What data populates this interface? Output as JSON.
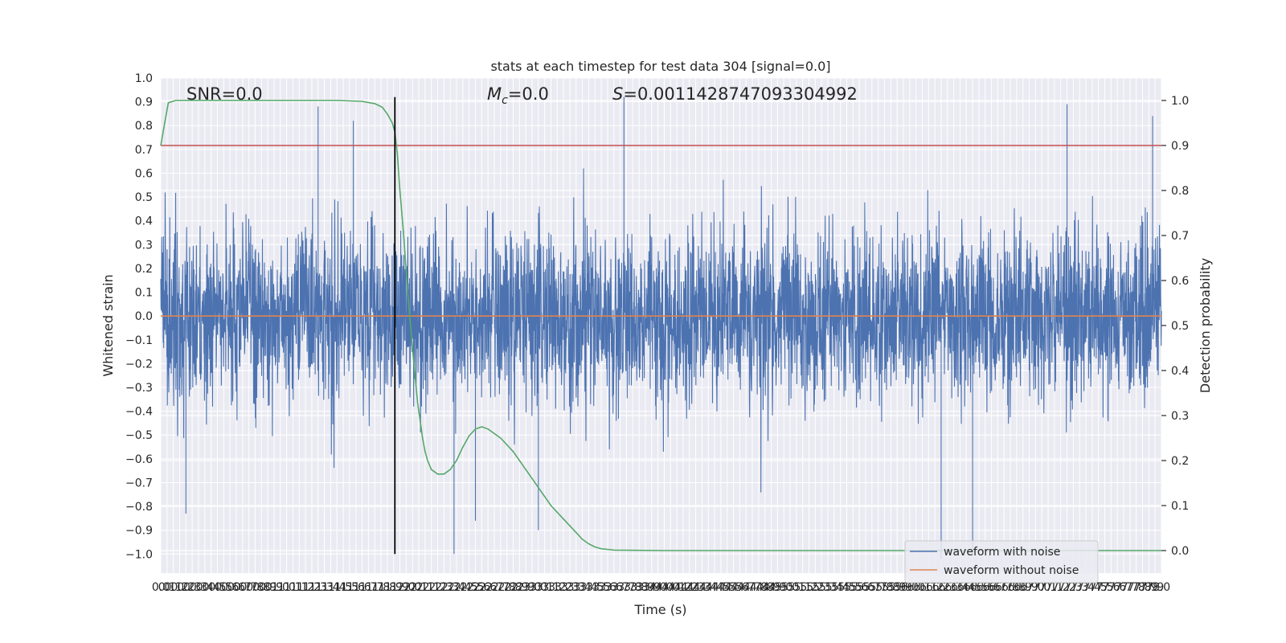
{
  "chart_data": {
    "type": "line",
    "title": "stats at each timestep for test data 304 [signal=0.0]",
    "xlabel": "Time (s)",
    "ylabel_left": "Whitened strain",
    "ylabel_right": "Detection probability",
    "xlim": [
      0.0,
      7.95
    ],
    "ylim_left": [
      -1.08,
      1.0
    ],
    "ylim_right": [
      -0.05,
      1.05
    ],
    "grid": true,
    "x_tick_step": 0.05,
    "x_tick_labels_shown": [
      "0.0",
      "0.1",
      "0.2",
      "0.3",
      "0.4",
      "0.5",
      "0.6",
      "0.7",
      "0.8",
      "0.9",
      "1.0",
      "1.1",
      "1.2",
      "1.3",
      "1.4",
      "1.5",
      "1.6",
      "1.7",
      "1.8",
      "1.9",
      "2.0",
      "2.1",
      "2.2",
      "2.3",
      "2.4",
      "2.5",
      "2.6",
      "2.7",
      "2.8",
      "2.9",
      "3.0",
      "3.1",
      "3.2",
      "3.3",
      "3.4",
      "3.5",
      "3.6",
      "3.7",
      "3.8",
      "3.9",
      "4.0",
      "4.1",
      "4.2",
      "4.3",
      "4.4",
      "4.5",
      "4.6",
      "4.7",
      "4.8",
      "4.9",
      "5.0",
      "5.1",
      "5.2",
      "5.3",
      "5.4",
      "5.5",
      "5.6",
      "5.7",
      "5.8",
      "5.9",
      "6.0",
      "6.1",
      "6.2",
      "6.3",
      "6.4",
      "6.5",
      "6.6",
      "6.7",
      "6.8",
      "6.9",
      "7.0",
      "7.1",
      "7.2",
      "7.3",
      "7.4",
      "7.5",
      "7.6",
      "7.7",
      "7.8",
      "7.9"
    ],
    "y_ticks_left": [
      -1.0,
      -0.9,
      -0.8,
      -0.7,
      -0.6,
      -0.5,
      -0.4,
      -0.3,
      -0.2,
      -0.1,
      0.0,
      0.1,
      0.2,
      0.3,
      0.4,
      0.5,
      0.6,
      0.7,
      0.8,
      0.9,
      1.0
    ],
    "y_ticks_right": [
      0.0,
      0.1,
      0.2,
      0.3,
      0.4,
      0.5,
      0.6,
      0.7,
      0.8,
      0.9,
      1.0
    ],
    "annotations": {
      "snr": "SNR=0.0",
      "mc_symbol": "M",
      "mc_sub": "c",
      "mc_value": "=0.0",
      "s_symbol": "S",
      "s_value": "=0.0011428747093304992"
    },
    "legend": {
      "placement": "lower-right",
      "entries": [
        {
          "label": "waveform with noise",
          "color": "#4c72b0"
        },
        {
          "label": "waveform without noise",
          "color": "#dd8452"
        }
      ]
    },
    "threshold": {
      "axis": "right",
      "value": 0.9,
      "color": "#c44e52"
    },
    "vertical_marker": {
      "x": 1.86,
      "y_from": -1.0,
      "y_to": 0.92,
      "color": "#000000"
    },
    "series": [
      {
        "name": "waveform with noise",
        "axis": "left",
        "color": "#4c72b0",
        "style": "dense-noise",
        "x_range": [
          0.0,
          7.95
        ],
        "sigma": 0.18,
        "extreme_peaks": [
          {
            "x": 0.2,
            "y": -0.83
          },
          {
            "x": 1.25,
            "y": 0.88
          },
          {
            "x": 1.53,
            "y": 0.82
          },
          {
            "x": 2.33,
            "y": -1.0
          },
          {
            "x": 2.5,
            "y": -0.86
          },
          {
            "x": 3.0,
            "y": -0.9
          },
          {
            "x": 3.68,
            "y": 0.92
          },
          {
            "x": 6.2,
            "y": -1.02
          },
          {
            "x": 6.45,
            "y": -1.0
          },
          {
            "x": 7.2,
            "y": 0.89
          },
          {
            "x": 7.88,
            "y": 0.84
          }
        ]
      },
      {
        "name": "waveform without noise",
        "axis": "left",
        "color": "#dd8452",
        "x": [
          0.0,
          7.95
        ],
        "y": [
          0.0,
          0.0
        ]
      },
      {
        "name": "",
        "axis": "right",
        "color": "#55a868",
        "x": [
          0.0,
          0.06,
          0.12,
          0.3,
          0.6,
          1.0,
          1.4,
          1.6,
          1.7,
          1.76,
          1.8,
          1.84,
          1.86,
          1.88,
          1.9,
          1.93,
          1.96,
          2.0,
          2.04,
          2.08,
          2.1,
          2.12,
          2.15,
          2.2,
          2.25,
          2.3,
          2.35,
          2.4,
          2.45,
          2.5,
          2.55,
          2.6,
          2.7,
          2.8,
          2.9,
          3.0,
          3.1,
          3.2,
          3.3,
          3.35,
          3.4,
          3.45,
          3.5,
          3.6,
          4.0,
          5.0,
          6.0,
          7.0,
          7.95
        ],
        "y": [
          0.9,
          0.995,
          1.0,
          1.0,
          1.0,
          1.0,
          1.0,
          0.998,
          0.993,
          0.985,
          0.97,
          0.95,
          0.93,
          0.88,
          0.8,
          0.7,
          0.58,
          0.45,
          0.33,
          0.25,
          0.22,
          0.2,
          0.18,
          0.17,
          0.17,
          0.18,
          0.2,
          0.23,
          0.255,
          0.27,
          0.275,
          0.27,
          0.25,
          0.22,
          0.18,
          0.14,
          0.1,
          0.07,
          0.04,
          0.025,
          0.015,
          0.008,
          0.004,
          0.001,
          0.0,
          0.0,
          0.0,
          0.0,
          0.0
        ]
      }
    ]
  }
}
